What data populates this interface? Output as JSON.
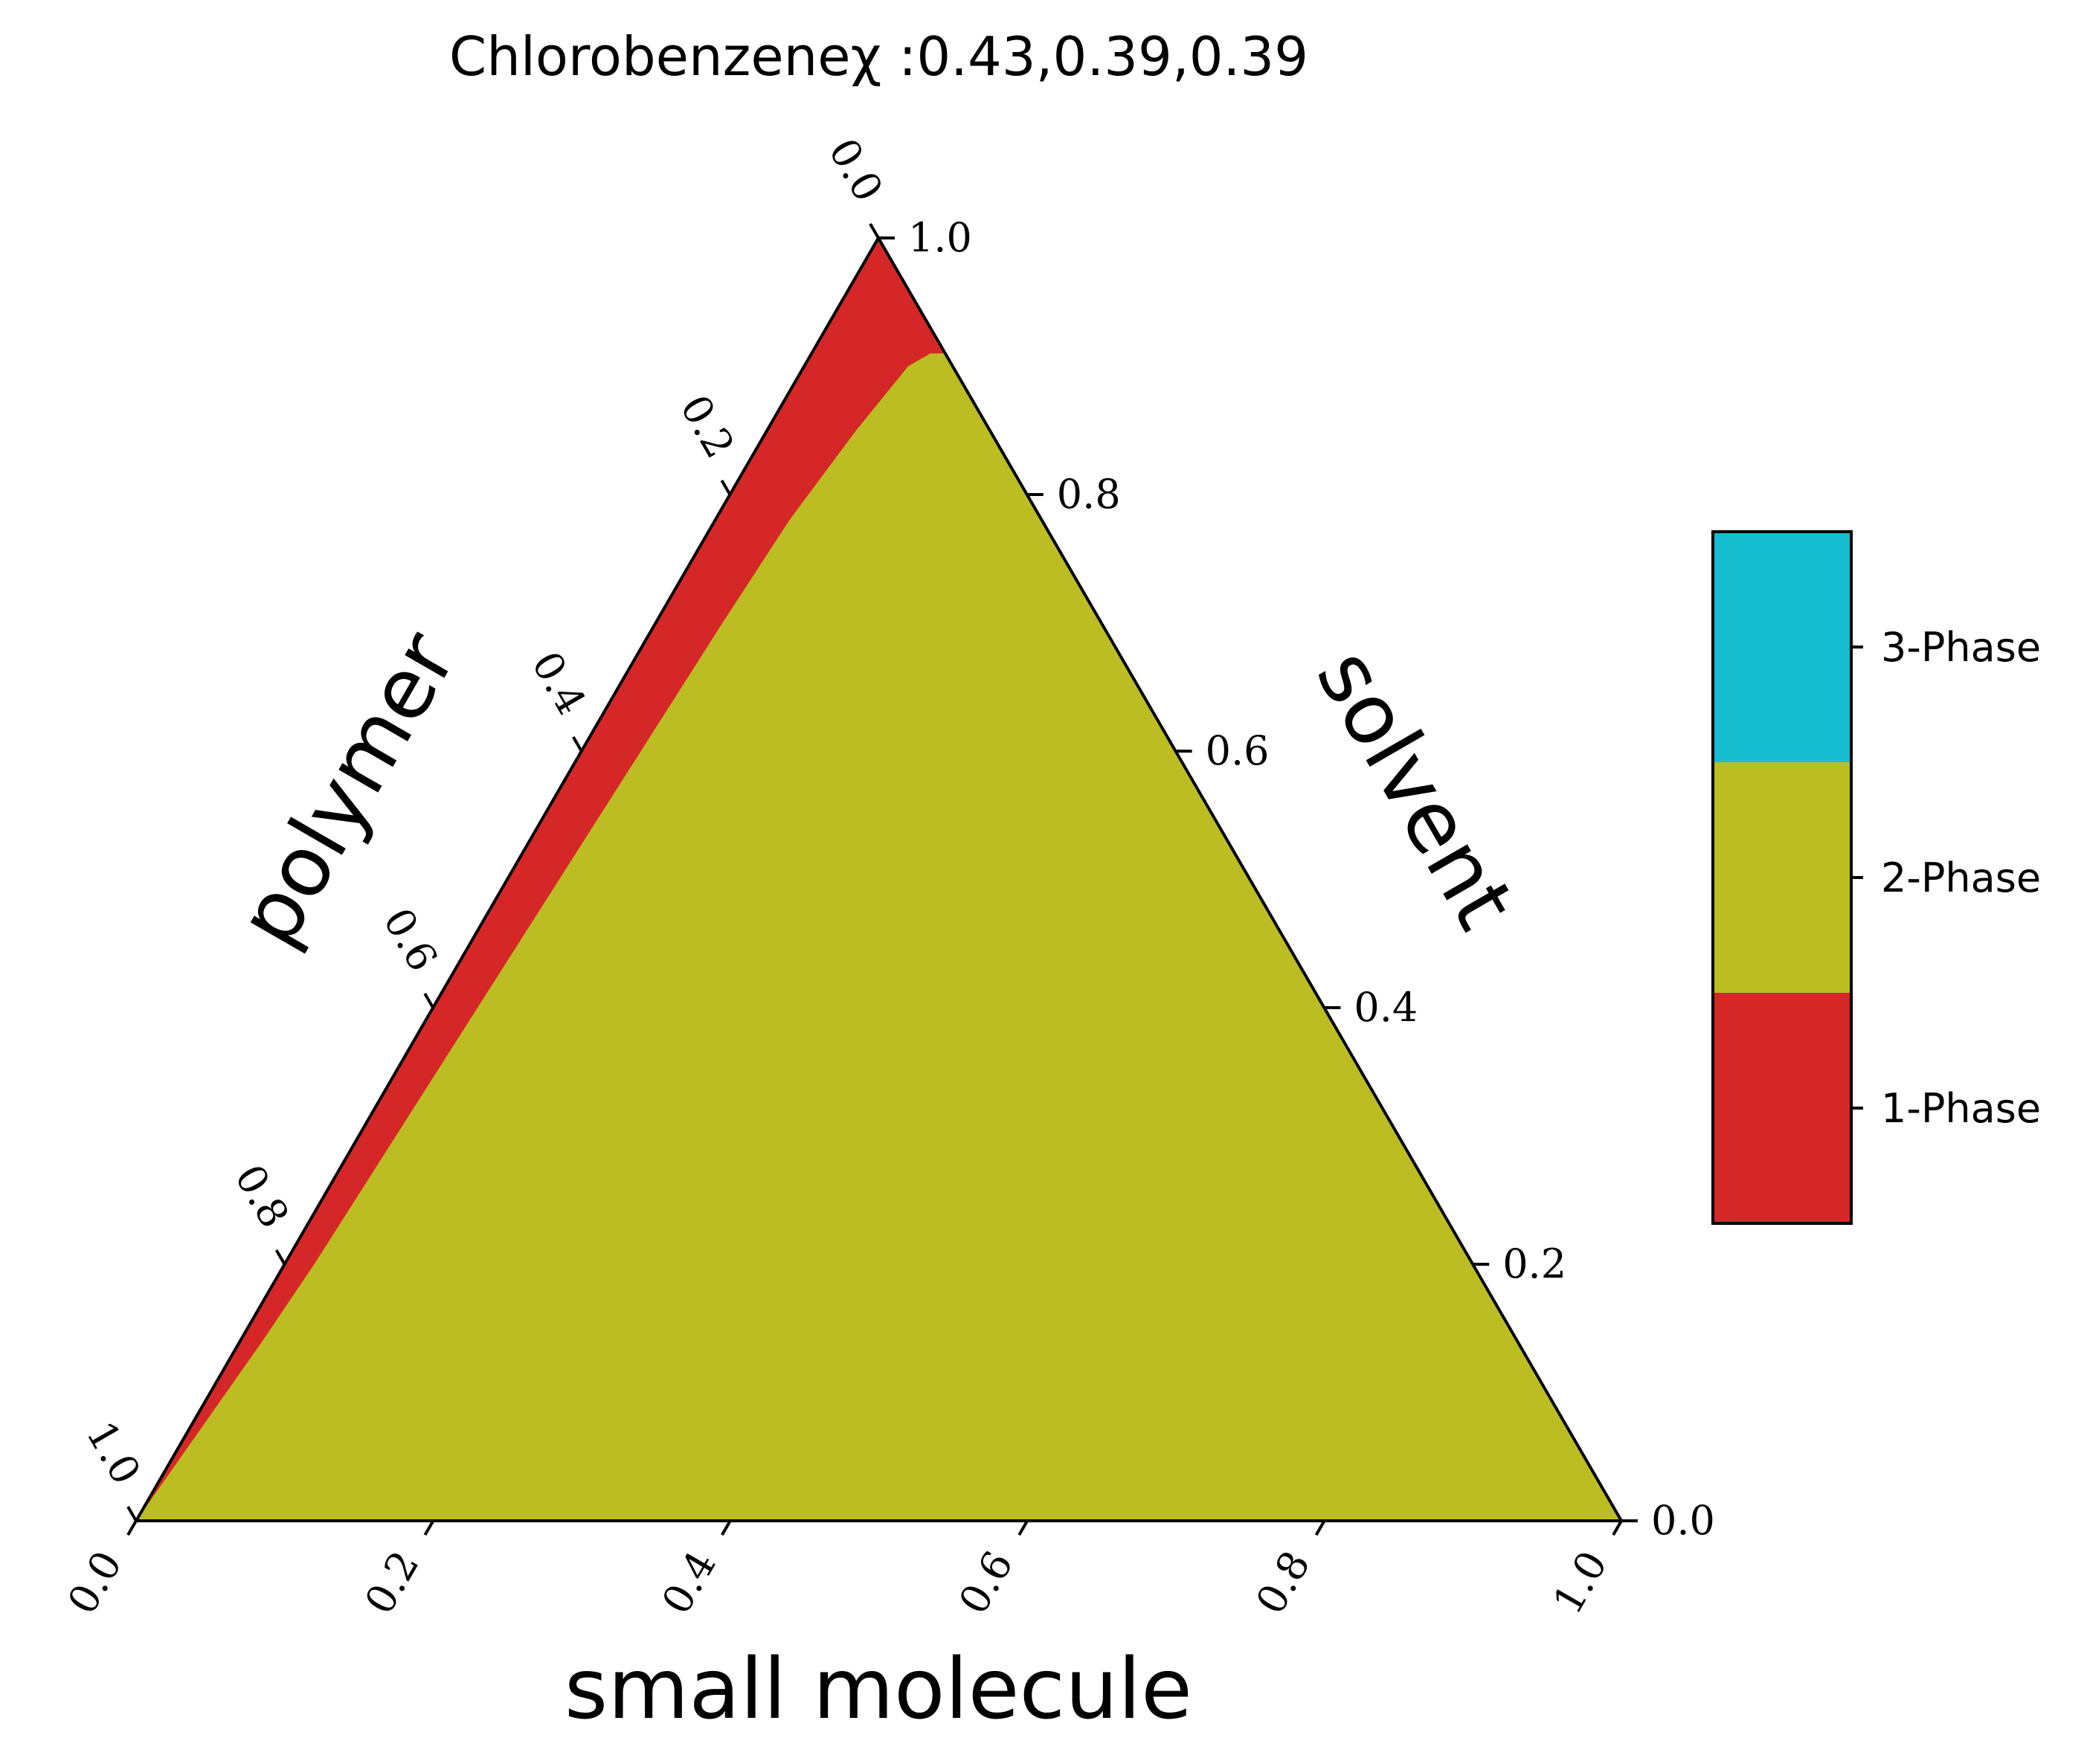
{
  "chart_data": {
    "type": "ternary-phase-diagram",
    "title": "Chlorobenzeneχ :0.43,0.39,0.39",
    "axes": {
      "bottom": {
        "label": "small molecule",
        "ticks": [
          "0.0",
          "0.2",
          "0.4",
          "0.6",
          "0.8",
          "1.0"
        ],
        "range": [
          0,
          1
        ]
      },
      "right": {
        "label": "solvent",
        "ticks": [
          "0.0",
          "0.2",
          "0.4",
          "0.6",
          "0.8",
          "1.0"
        ],
        "range": [
          0,
          1
        ]
      },
      "left": {
        "label": "polymer",
        "ticks": [
          "0.0",
          "0.2",
          "0.4",
          "0.6",
          "0.8",
          "1.0"
        ],
        "range": [
          0,
          1
        ]
      }
    },
    "legend": {
      "placement": "right",
      "entries": [
        {
          "label": "3-Phase",
          "color": "#17becf"
        },
        {
          "label": "2-Phase",
          "color": "#bcbd22"
        },
        {
          "label": "1-Phase",
          "color": "#d62728"
        }
      ]
    },
    "regions": [
      {
        "phase": "1-Phase",
        "color": "#d62728",
        "note_vertices_in_fractions": "full triangle",
        "vertices": [
          {
            "small_molecule": 0.0,
            "solvent": 1.0,
            "polymer": 0.0
          },
          {
            "small_molecule": 0.0,
            "solvent": 0.0,
            "polymer": 1.0
          },
          {
            "small_molecule": 1.0,
            "solvent": 0.0,
            "polymer": 0.0
          }
        ]
      },
      {
        "phase": "2-Phase",
        "color": "#bcbd22",
        "boundary": [
          {
            "small_molecule": 0.08,
            "solvent": 0.91,
            "polymer": 0.01
          },
          {
            "small_molecule": 0.07,
            "solvent": 0.9,
            "polymer": 0.03
          },
          {
            "small_molecule": 0.06,
            "solvent": 0.85,
            "polymer": 0.09
          },
          {
            "small_molecule": 0.05,
            "solvent": 0.78,
            "polymer": 0.17
          },
          {
            "small_molecule": 0.045,
            "solvent": 0.7,
            "polymer": 0.255
          },
          {
            "small_molecule": 0.04,
            "solvent": 0.6,
            "polymer": 0.36
          },
          {
            "small_molecule": 0.035,
            "solvent": 0.5,
            "polymer": 0.465
          },
          {
            "small_molecule": 0.03,
            "solvent": 0.4,
            "polymer": 0.57
          },
          {
            "small_molecule": 0.025,
            "solvent": 0.3,
            "polymer": 0.675
          },
          {
            "small_molecule": 0.02,
            "solvent": 0.2,
            "polymer": 0.78
          },
          {
            "small_molecule": 0.015,
            "solvent": 0.14,
            "polymer": 0.845
          },
          {
            "small_molecule": 0.0,
            "solvent": 0.0,
            "polymer": 1.0
          },
          {
            "small_molecule": 1.0,
            "solvent": 0.0,
            "polymer": 0.0
          },
          {
            "small_molecule": 0.09,
            "solvent": 0.91,
            "polymer": 0.0
          }
        ]
      }
    ]
  }
}
